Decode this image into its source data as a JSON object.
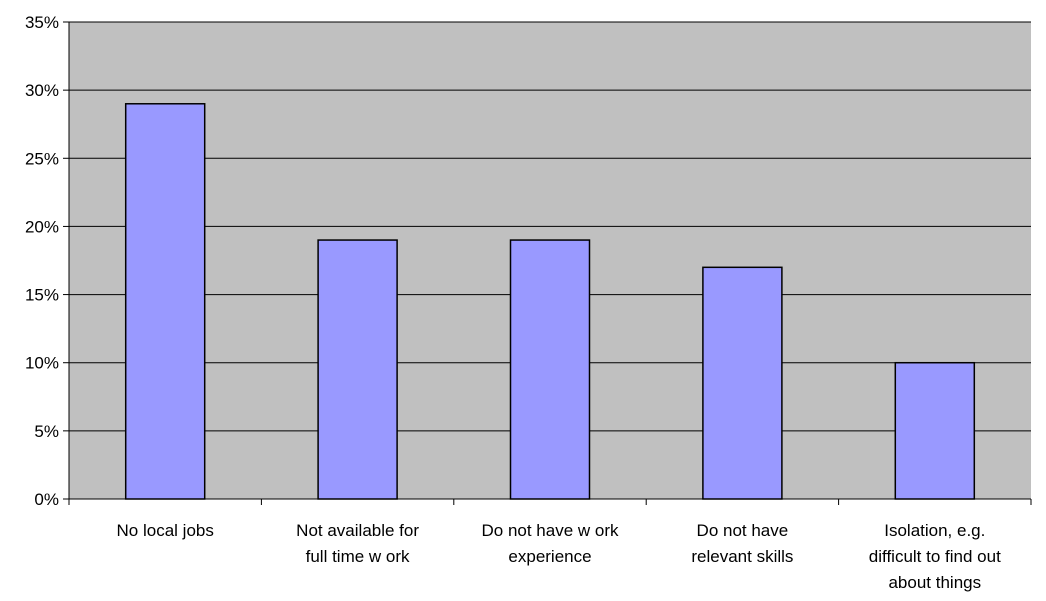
{
  "chart_data": {
    "type": "bar",
    "categories": [
      [
        "No local jobs"
      ],
      [
        "Not available for",
        "full time w ork"
      ],
      [
        "Do not have w ork",
        "experience"
      ],
      [
        "Do not have",
        "relevant skills"
      ],
      [
        "Isolation, e.g.",
        "difficult to find out",
        "about things"
      ]
    ],
    "values": [
      29,
      19,
      19,
      17,
      10
    ],
    "yticks": [
      "0%",
      "5%",
      "10%",
      "15%",
      "20%",
      "25%",
      "30%",
      "35%"
    ],
    "ylim": [
      0,
      35
    ],
    "unit": "%",
    "grid": true,
    "legend": "none",
    "colors": {
      "plot_background": "#c0c0c0",
      "bar_fill": "#9999ff",
      "bar_stroke": "#000000",
      "gridline": "#000000",
      "axis": "#000000"
    }
  }
}
